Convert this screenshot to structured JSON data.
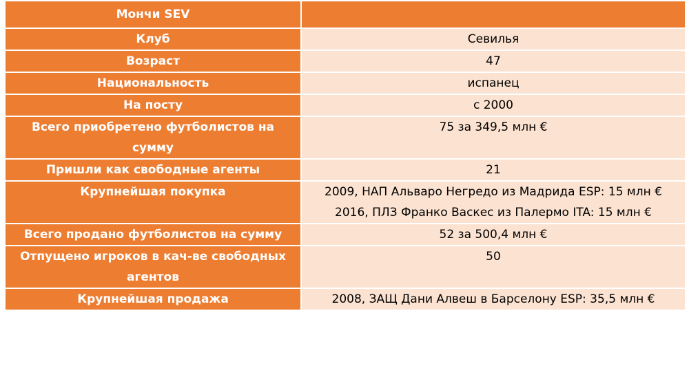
{
  "table": {
    "title": "Мончи SEV",
    "rows": [
      {
        "label": "Клуб",
        "values": [
          "Севилья"
        ]
      },
      {
        "label": "Возраст",
        "values": [
          "47"
        ]
      },
      {
        "label": "Национальность",
        "values": [
          "испанец"
        ]
      },
      {
        "label": "На посту",
        "values": [
          "с 2000"
        ]
      },
      {
        "label": "Всего приобретено футболистов на сумму",
        "values": [
          "75 за 349,5 млн €"
        ]
      },
      {
        "label": "Пришли как свободные агенты",
        "values": [
          "21"
        ]
      },
      {
        "label": "Крупнейшая покупка",
        "values": [
          "2009, НАП Альваро Негредо из Мадрида ESP: 15 млн €",
          "2016, ПЛЗ Франко Васкес из Палермо ITA: 15 млн €"
        ]
      },
      {
        "label": "Всего продано футболистов на сумму",
        "values": [
          "52 за 500,4 млн €"
        ]
      },
      {
        "label": "Отпущено игроков в кач-ве свободных агентов",
        "values": [
          "50"
        ]
      },
      {
        "label": "Крупнейшая продажа",
        "values": [
          "2008, ЗАЩ Дани Алвеш в Барселону ESP: 35,5 млн €"
        ]
      }
    ]
  }
}
